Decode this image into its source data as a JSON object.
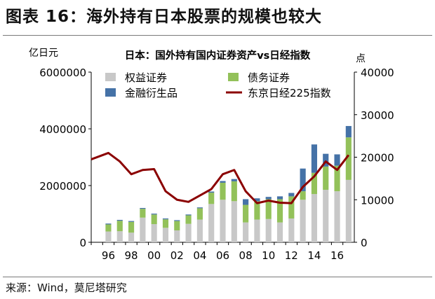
{
  "figure_title": "图表 16：海外持有日本股票的规模也较大",
  "source": "来源：Wind，莫尼塔研究",
  "chart_data": {
    "type": "bar",
    "stacked": true,
    "title": "日本：国外持有国内证券资产vs日经指数",
    "ylabel_left": "亿日元",
    "ylabel_right": "点",
    "ylim_left": [
      0,
      6000000
    ],
    "ylim_right": [
      0,
      40000
    ],
    "yticks_left": [
      "0",
      "2000000",
      "4000000",
      "6000000"
    ],
    "yticks_right": [
      "0",
      "10000",
      "20000",
      "30000",
      "40000"
    ],
    "xticks": [
      "96",
      "98",
      "00",
      "02",
      "04",
      "06",
      "08",
      "10",
      "12",
      "14",
      "16"
    ],
    "years": [
      1995,
      1996,
      1997,
      1998,
      1999,
      2000,
      2001,
      2002,
      2003,
      2004,
      2005,
      2006,
      2007,
      2008,
      2009,
      2010,
      2011,
      2012,
      2013,
      2014,
      2015,
      2016,
      2017
    ],
    "legend_position": "top-left",
    "grid": false,
    "colors": {
      "equity": "#c8c8c8",
      "bond": "#93c15a",
      "derivative": "#4572a7",
      "nikkei": "#8b0000"
    },
    "series": [
      {
        "name": "权益证券",
        "kind": "bar",
        "values": [
          0,
          380000,
          390000,
          340000,
          870000,
          640000,
          510000,
          420000,
          650000,
          800000,
          1350000,
          1500000,
          1450000,
          700000,
          800000,
          820000,
          700000,
          840000,
          1500000,
          1700000,
          1850000,
          1800000,
          2200000
        ]
      },
      {
        "name": "债务证券",
        "kind": "bar",
        "values": [
          0,
          250000,
          370000,
          380000,
          310000,
          340000,
          300000,
          330000,
          300000,
          400000,
          400000,
          600000,
          700000,
          620000,
          650000,
          700000,
          820000,
          780000,
          300000,
          750000,
          820000,
          900000,
          1500000
        ]
      },
      {
        "name": "金融衍生品",
        "kind": "bar",
        "values": [
          0,
          30000,
          30000,
          30000,
          30000,
          30000,
          30000,
          30000,
          30000,
          30000,
          40000,
          60000,
          80000,
          200000,
          100000,
          80000,
          100000,
          120000,
          800000,
          1000000,
          450000,
          400000,
          400000
        ]
      },
      {
        "name": "东京日经225指数",
        "kind": "line",
        "values": [
          19500,
          21000,
          19000,
          16000,
          17000,
          17200,
          12000,
          10000,
          9500,
          11000,
          12500,
          16000,
          17000,
          12000,
          9200,
          9800,
          9300,
          9200,
          13000,
          15500,
          19000,
          17000,
          20500
        ]
      }
    ]
  }
}
